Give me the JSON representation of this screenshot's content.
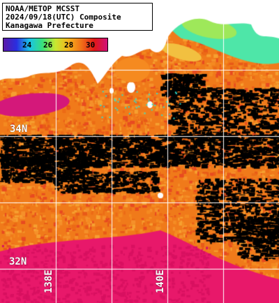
{
  "title": {
    "line1": "NOAA/METOP MCSST",
    "line2": "2024/09/18(UTC) Composite",
    "line3": "Kanagawa Prefecture"
  },
  "color_scale": {
    "ticks": [
      "24",
      "26",
      "28",
      "30"
    ],
    "gradient": [
      "#5a1aa8",
      "#2a2ee0",
      "#19c3e8",
      "#38e07a",
      "#c8e830",
      "#f5b31c",
      "#f07018",
      "#e01818",
      "#d0107a"
    ]
  },
  "grid_labels": {
    "lat_top": "34N",
    "lat_bottom": "32N",
    "lon_left": "138E",
    "lon_right": "140E"
  },
  "colors": {
    "land": "#ffffff",
    "cloud": "#000000",
    "warm_sea": "#f07a1a",
    "hot_sea": "#e8186a",
    "cool_sea": "#4ee6a8",
    "grid": "#ffffff"
  }
}
